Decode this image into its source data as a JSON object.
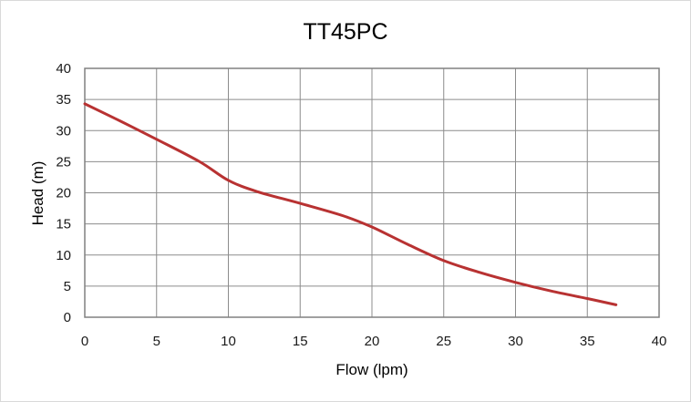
{
  "chart_data": {
    "type": "line",
    "title": "TT45PC",
    "xlabel": "Flow (lpm)",
    "ylabel": "Head (m)",
    "xlim": [
      0,
      40
    ],
    "ylim": [
      0,
      40
    ],
    "x_ticks": [
      0,
      5,
      10,
      15,
      20,
      25,
      30,
      35,
      40
    ],
    "y_ticks": [
      0,
      5,
      10,
      15,
      20,
      25,
      30,
      35,
      40
    ],
    "grid": true,
    "legend": "none",
    "series": [
      {
        "color": "#b83232",
        "points": [
          [
            0,
            34.3
          ],
          [
            2.5,
            31.5
          ],
          [
            5,
            28.6
          ],
          [
            8,
            25.0
          ],
          [
            10,
            22.0
          ],
          [
            12,
            20.2
          ],
          [
            15,
            18.3
          ],
          [
            18,
            16.3
          ],
          [
            20,
            14.5
          ],
          [
            22.5,
            11.7
          ],
          [
            25,
            9.1
          ],
          [
            27.5,
            7.2
          ],
          [
            30,
            5.6
          ],
          [
            32.5,
            4.2
          ],
          [
            35,
            3.0
          ],
          [
            37,
            2.0
          ]
        ]
      }
    ]
  }
}
